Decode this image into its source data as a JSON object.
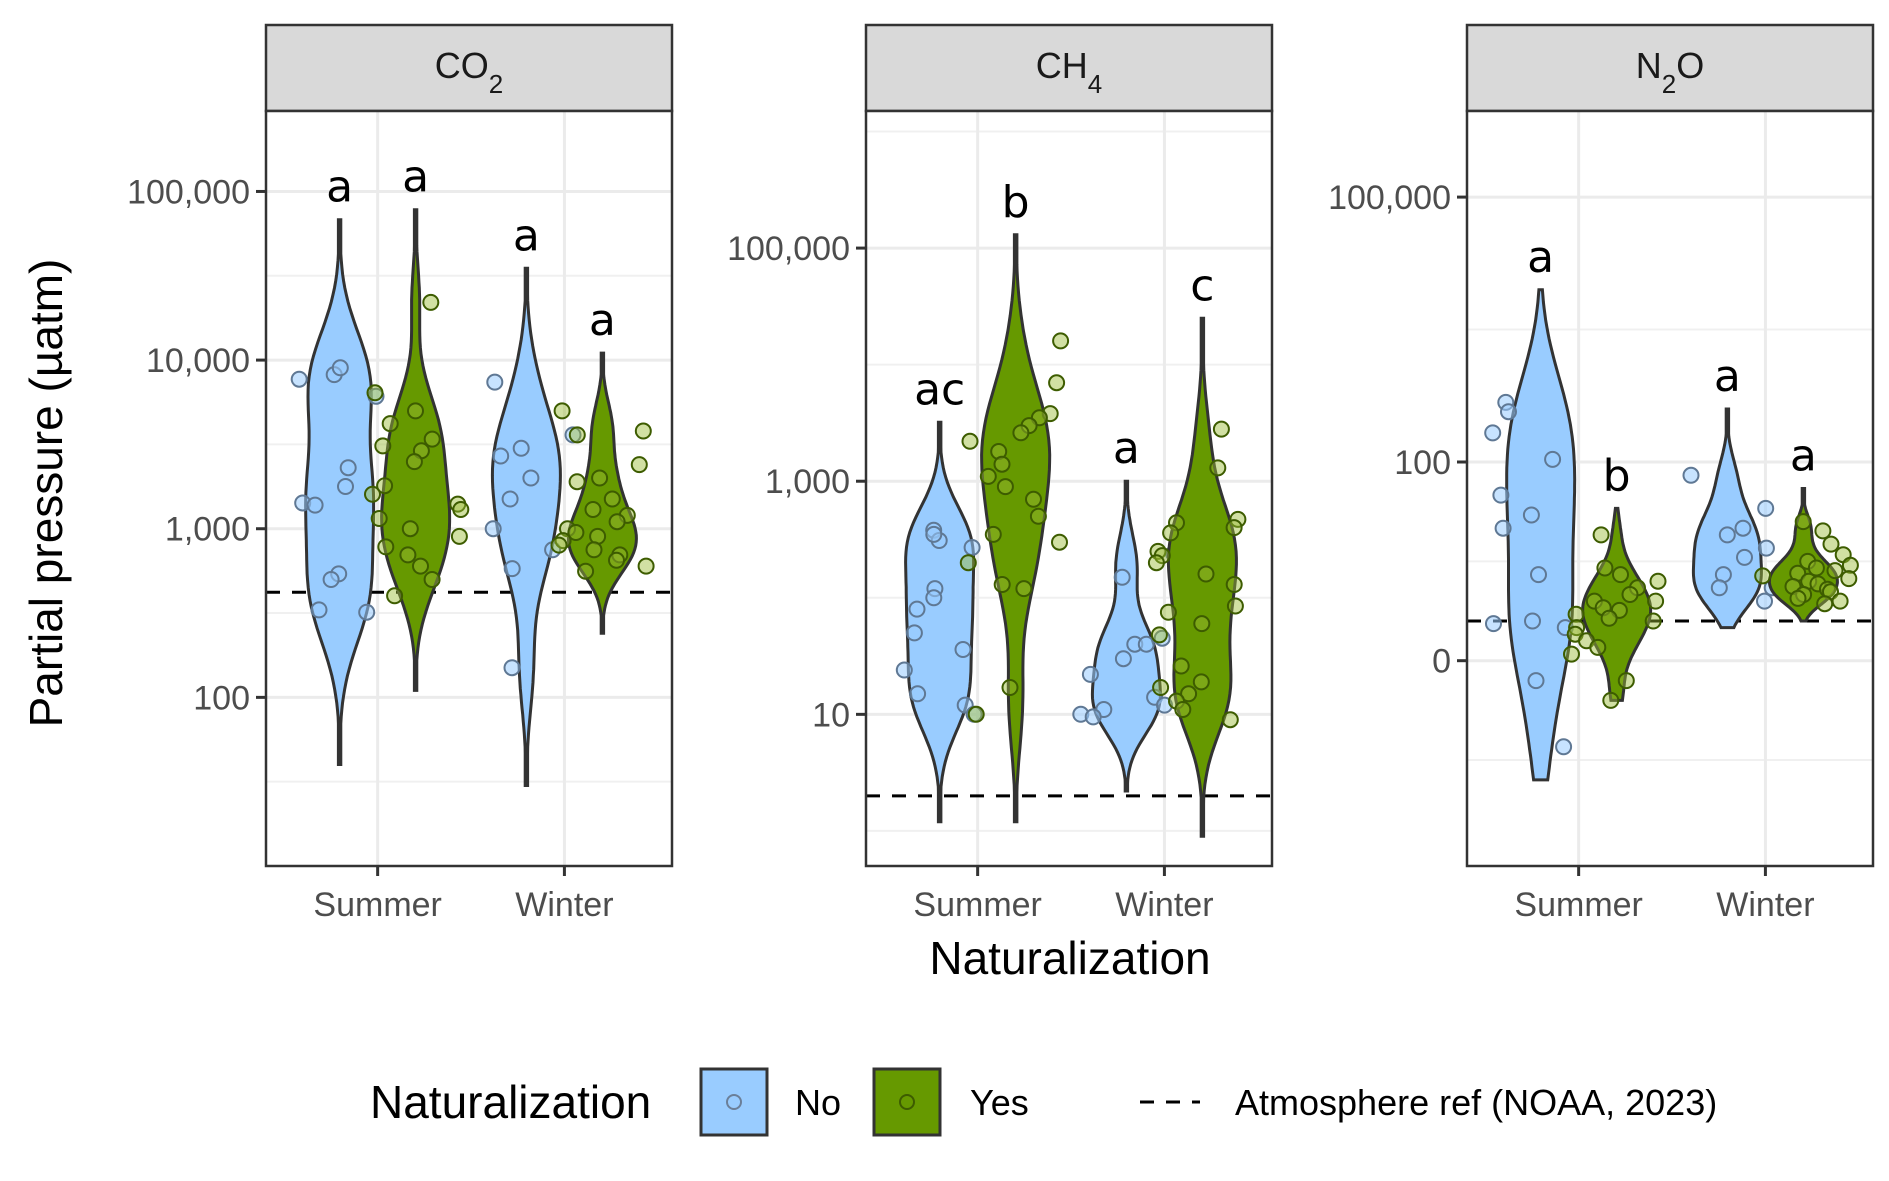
{
  "chart_data": {
    "type": "violin",
    "y_axis_label": "Partial pressure (µatm)",
    "x_axis_label": "Naturalization",
    "legend": {
      "title": "Naturalization",
      "entries": [
        {
          "name": "No",
          "color": "#99CCFF"
        },
        {
          "name": "Yes",
          "color": "#669900"
        }
      ],
      "reference_line_label": "Atmosphere ref (NOAA, 2023)",
      "position": "bottom"
    },
    "categories": [
      "Summer",
      "Winter"
    ],
    "panels": [
      {
        "name": "CO2",
        "strip_main": "CO",
        "strip_sub": "2",
        "scale": "log10",
        "ylim": [
          10,
          300000
        ],
        "yticks": [
          100,
          1000,
          10000,
          100000
        ],
        "ytick_labels": [
          "100",
          "1,000",
          "10,000",
          "100,000"
        ],
        "reference_value": 420,
        "groups": [
          {
            "season": "Summer",
            "naturalization": "No",
            "letter": "a",
            "range": [
              40,
              68000
            ],
            "points": [
              540,
              1780,
              1420,
              1380,
              8200,
              9000,
              7700,
              6100,
              2300,
              500,
              330,
              320
            ]
          },
          {
            "season": "Summer",
            "naturalization": "Yes",
            "letter": "a",
            "range": [
              110,
              78000
            ],
            "points": [
              22000,
              6400,
              5000,
              4200,
              3400,
              3100,
              2900,
              2500,
              1800,
              1600,
              1400,
              1300,
              1150,
              1000,
              900,
              780,
              700,
              600,
              500,
              400
            ]
          },
          {
            "season": "Winter",
            "naturalization": "No",
            "letter": "a",
            "range": [
              30,
              35000
            ],
            "points": [
              7400,
              3600,
              3000,
              2700,
              2000,
              1500,
              1000,
              750,
              580,
              150
            ]
          },
          {
            "season": "Winter",
            "naturalization": "Yes",
            "letter": "a",
            "range": [
              240,
              11000
            ],
            "points": [
              5000,
              3800,
              3600,
              2400,
              2000,
              1900,
              1500,
              1300,
              1200,
              1100,
              1000,
              950,
              900,
              850,
              800,
              750,
              700,
              650,
              600,
              560
            ]
          }
        ]
      },
      {
        "name": "CH4",
        "strip_main": "CH",
        "strip_sub": "4",
        "scale": "log10",
        "ylim": [
          0.5,
          1500000
        ],
        "yticks": [
          10,
          1000,
          100000
        ],
        "ytick_labels": [
          "10",
          "1,000",
          "100,000"
        ],
        "reference_value": 2,
        "groups": [
          {
            "season": "Summer",
            "naturalization": "No",
            "letter": "ac",
            "range": [
              1.2,
              3200
            ],
            "points": [
              380,
              310,
              350,
              270,
              120,
              100,
              80,
              50,
              36,
              24,
              15,
              12,
              10
            ]
          },
          {
            "season": "Summer",
            "naturalization": "Yes",
            "letter": "b",
            "range": [
              1.2,
              130000
            ],
            "points": [
              16000,
              7000,
              3800,
              3500,
              3000,
              2600,
              2200,
              1800,
              1400,
              1100,
              900,
              700,
              500,
              350,
              300,
              200,
              130,
              120,
              17,
              10
            ]
          },
          {
            "season": "Winter",
            "naturalization": "No",
            "letter": "a",
            "range": [
              2.2,
              1000
            ],
            "points": [
              240,
              150,
              45,
              40,
              30,
              22,
              14,
              12,
              11,
              10,
              9.5,
              40
            ]
          },
          {
            "season": "Winter",
            "naturalization": "Yes",
            "letter": "c",
            "range": [
              0.9,
              25000
            ],
            "points": [
              2800,
              1300,
              470,
              440,
              400,
              360,
              250,
              230,
              200,
              160,
              130,
              85,
              75,
              60,
              48,
              26,
              19,
              17,
              15,
              13,
              11,
              9
            ]
          }
        ]
      },
      {
        "name": "N2O",
        "strip_main": "N",
        "strip_sub": "2",
        "strip_end": "O",
        "scale": "pseudo-log",
        "ylim_transformed": [
          -1.55,
          4.15
        ],
        "yticks": [
          0,
          100,
          100000
        ],
        "ytick_labels": [
          "0",
          "100",
          "100,000"
        ],
        "reference_value": 0.3,
        "groups": [
          {
            "season": "Summer",
            "naturalization": "No",
            "letter": "a",
            "range": [
              -0.9,
              2.8
            ],
            "points": [
              1.95,
              1.88,
              1.72,
              1.52,
              1.25,
              1.1,
              1.0,
              0.65,
              0.3,
              0.28,
              0.25,
              -0.15,
              -0.65
            ]
          },
          {
            "season": "Summer",
            "naturalization": "Yes",
            "letter": "b",
            "range": [
              -0.3,
              1.15
            ],
            "points": [
              0.95,
              0.6,
              0.55,
              0.5,
              0.45,
              0.4,
              0.35,
              0.3,
              0.25,
              0.2,
              0.15,
              0.1,
              0.05,
              -0.15,
              -0.3,
              0.7,
              0.65,
              0.45,
              0.38,
              0.32
            ]
          },
          {
            "season": "Winter",
            "naturalization": "No",
            "letter": "a",
            "range": [
              0.25,
              1.9
            ],
            "points": [
              1.4,
              1.15,
              1.0,
              0.95,
              0.85,
              0.78,
              0.65,
              0.55,
              0.45,
              0.55
            ]
          },
          {
            "season": "Winter",
            "naturalization": "Yes",
            "letter": "a",
            "range": [
              0.3,
              1.3
            ],
            "points": [
              1.05,
              0.98,
              0.88,
              0.8,
              0.75,
              0.72,
              0.7,
              0.68,
              0.66,
              0.64,
              0.62,
              0.6,
              0.58,
              0.56,
              0.54,
              0.52,
              0.5,
              0.47,
              0.45,
              0.43
            ]
          }
        ]
      }
    ]
  }
}
